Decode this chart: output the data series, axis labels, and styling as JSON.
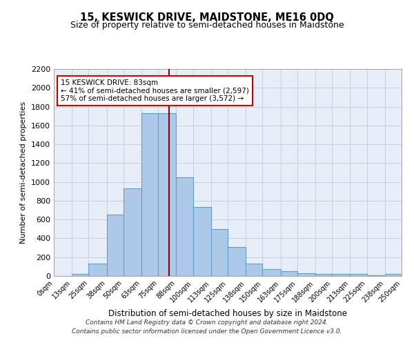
{
  "title1": "15, KESWICK DRIVE, MAIDSTONE, ME16 0DQ",
  "title2": "Size of property relative to semi-detached houses in Maidstone",
  "xlabel": "Distribution of semi-detached houses by size in Maidstone",
  "ylabel": "Number of semi-detached properties",
  "bin_edges": [
    0,
    13,
    25,
    38,
    50,
    63,
    75,
    88,
    100,
    113,
    125,
    138,
    150,
    163,
    175,
    188,
    200,
    213,
    225,
    238,
    250
  ],
  "bar_heights": [
    0,
    25,
    130,
    650,
    930,
    1730,
    1730,
    1050,
    730,
    500,
    310,
    130,
    70,
    50,
    30,
    20,
    20,
    20,
    5,
    20
  ],
  "bar_color": "#aec8e8",
  "bar_edge_color": "#5a9fd4",
  "property_size": 83,
  "property_line_color": "#8b0000",
  "annotation_text": "15 KESWICK DRIVE: 83sqm\n← 41% of semi-detached houses are smaller (2,597)\n57% of semi-detached houses are larger (3,572) →",
  "annotation_box_color": "#ffffff",
  "annotation_box_edge_color": "#cc0000",
  "ylim": [
    0,
    2200
  ],
  "yticks": [
    0,
    200,
    400,
    600,
    800,
    1000,
    1200,
    1400,
    1600,
    1800,
    2000,
    2200
  ],
  "xtick_labels": [
    "0sqm",
    "13sqm",
    "25sqm",
    "38sqm",
    "50sqm",
    "63sqm",
    "75sqm",
    "88sqm",
    "100sqm",
    "113sqm",
    "125sqm",
    "138sqm",
    "150sqm",
    "163sqm",
    "175sqm",
    "188sqm",
    "200sqm",
    "213sqm",
    "225sqm",
    "238sqm",
    "250sqm"
  ],
  "xtick_positions": [
    0,
    13,
    25,
    38,
    50,
    63,
    75,
    88,
    100,
    113,
    125,
    138,
    150,
    163,
    175,
    188,
    200,
    213,
    225,
    238,
    250
  ],
  "grid_color": "#c8d0e0",
  "bg_color": "#e8eef8",
  "footer_line1": "Contains HM Land Registry data © Crown copyright and database right 2024.",
  "footer_line2": "Contains public sector information licensed under the Open Government Licence v3.0."
}
